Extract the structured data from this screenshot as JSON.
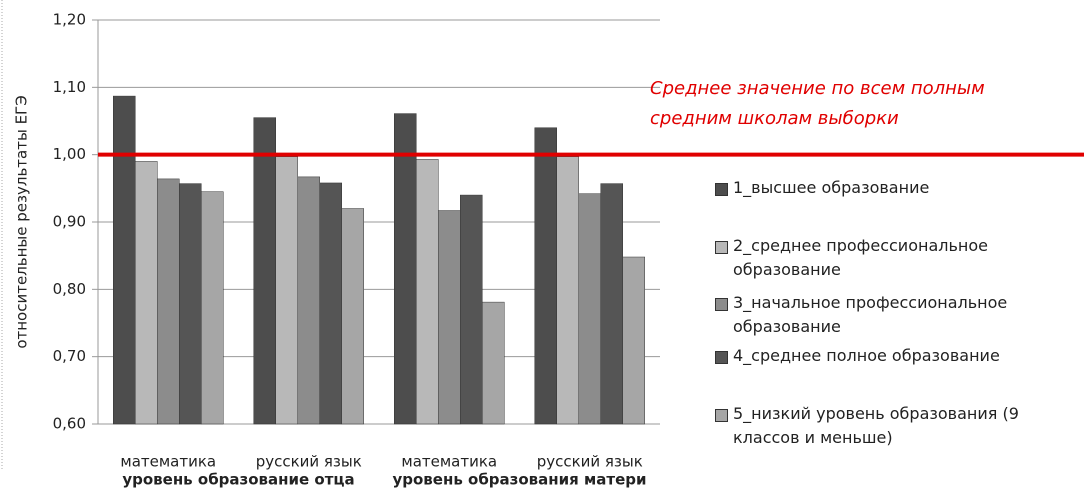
{
  "chart_data": {
    "type": "bar",
    "y_label": "относительные результаты ЕГЭ",
    "categories": [
      "математика",
      "русский язык",
      "математика",
      "русский язык"
    ],
    "groups": [
      {
        "label": "уровень образование отца",
        "span": [
          0,
          1
        ]
      },
      {
        "label": "уровень образования матери",
        "span": [
          2,
          3
        ]
      }
    ],
    "series": [
      {
        "name": "1_высшее образование",
        "color": "#4d4d4d",
        "values": [
          1.087,
          1.055,
          1.061,
          1.04
        ]
      },
      {
        "name": "2_среднее профессиональное образование",
        "color": "#b8b8b8",
        "values": [
          0.99,
          0.997,
          0.993,
          0.997
        ]
      },
      {
        "name": "3_начальное профессиональное образование",
        "color": "#8c8c8c",
        "values": [
          0.964,
          0.967,
          0.917,
          0.942
        ]
      },
      {
        "name": "4_среднее полное образование",
        "color": "#555555",
        "values": [
          0.957,
          0.958,
          0.94,
          0.957
        ]
      },
      {
        "name": "5_низкий уровень образования (9 классов и меньше)",
        "color": "#a6a6a6",
        "values": [
          0.945,
          0.92,
          0.781,
          0.848
        ]
      }
    ],
    "reference_line": {
      "value": 1.0,
      "label": "Среднее значение по всем полным средним школам выборки",
      "color": "#e00000"
    },
    "ylim": [
      0.6,
      1.2
    ],
    "yticks": [
      {
        "value": 0.6,
        "label": "0,60"
      },
      {
        "value": 0.7,
        "label": "0,70"
      },
      {
        "value": 0.8,
        "label": "0,80"
      },
      {
        "value": 0.9,
        "label": "0,90"
      },
      {
        "value": 1.0,
        "label": "1,00"
      },
      {
        "value": 1.1,
        "label": "1,10"
      },
      {
        "value": 1.2,
        "label": "1,20"
      }
    ],
    "grid": true
  }
}
